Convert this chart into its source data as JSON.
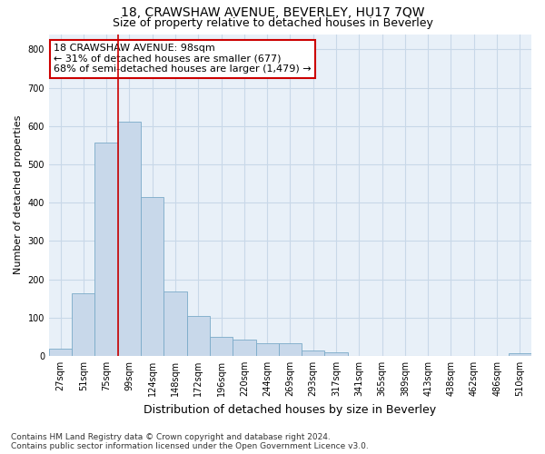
{
  "title": "18, CRAWSHAW AVENUE, BEVERLEY, HU17 7QW",
  "subtitle": "Size of property relative to detached houses in Beverley",
  "xlabel": "Distribution of detached houses by size in Beverley",
  "ylabel": "Number of detached properties",
  "categories": [
    "27sqm",
    "51sqm",
    "75sqm",
    "99sqm",
    "124sqm",
    "148sqm",
    "172sqm",
    "196sqm",
    "220sqm",
    "244sqm",
    "269sqm",
    "293sqm",
    "317sqm",
    "341sqm",
    "365sqm",
    "389sqm",
    "413sqm",
    "438sqm",
    "462sqm",
    "486sqm",
    "510sqm"
  ],
  "values": [
    18,
    163,
    556,
    612,
    415,
    168,
    103,
    50,
    42,
    33,
    33,
    14,
    10,
    0,
    0,
    0,
    0,
    0,
    0,
    0,
    7
  ],
  "bar_color": "#c8d8ea",
  "bar_edge_color": "#7aaac8",
  "vline_x_index": 3,
  "vline_color": "#cc0000",
  "annotation_text": "18 CRAWSHAW AVENUE: 98sqm\n← 31% of detached houses are smaller (677)\n68% of semi-detached houses are larger (1,479) →",
  "annotation_box_color": "white",
  "annotation_box_edge_color": "#cc0000",
  "ylim": [
    0,
    840
  ],
  "yticks": [
    0,
    100,
    200,
    300,
    400,
    500,
    600,
    700,
    800
  ],
  "grid_color": "#c8d8e8",
  "plot_bg_color": "#e8f0f8",
  "fig_bg_color": "#ffffff",
  "title_fontsize": 10,
  "subtitle_fontsize": 9,
  "xlabel_fontsize": 9,
  "ylabel_fontsize": 8,
  "tick_fontsize": 7,
  "annotation_fontsize": 8,
  "footnote_fontsize": 6.5,
  "footnote": "Contains HM Land Registry data © Crown copyright and database right 2024.\nContains public sector information licensed under the Open Government Licence v3.0."
}
